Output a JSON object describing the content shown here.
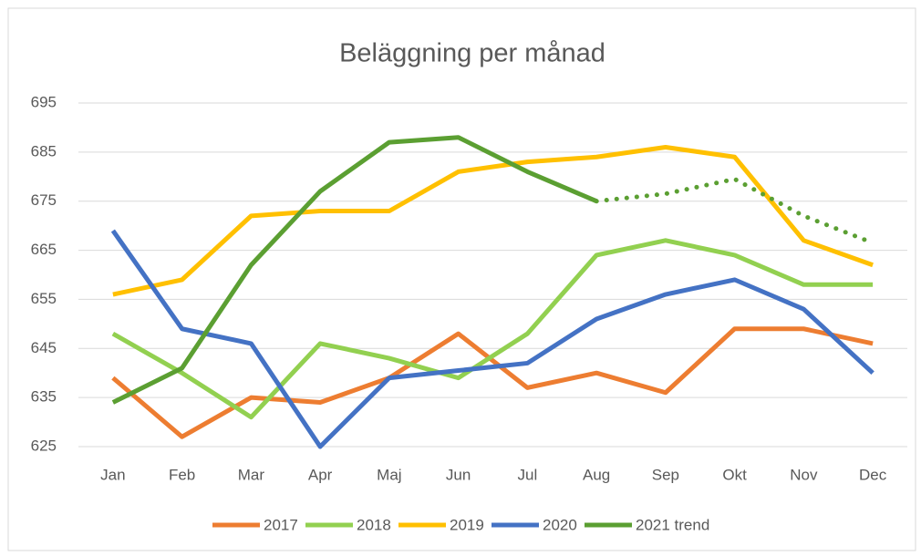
{
  "chart_data": {
    "type": "line",
    "title": "Beläggning per månad",
    "categories": [
      "Jan",
      "Feb",
      "Mar",
      "Apr",
      "Maj",
      "Jun",
      "Jul",
      "Aug",
      "Sep",
      "Okt",
      "Nov",
      "Dec"
    ],
    "series": [
      {
        "name": "2017",
        "color": "#ed7d31",
        "values": [
          639,
          627,
          635,
          634,
          639,
          648,
          637,
          640,
          636,
          649,
          649,
          646
        ]
      },
      {
        "name": "2018",
        "color": "#92d050",
        "values": [
          648,
          640,
          631,
          646,
          643,
          639,
          648,
          664,
          667,
          664,
          658,
          658
        ]
      },
      {
        "name": "2019",
        "color": "#ffc000",
        "values": [
          656,
          659,
          672,
          673,
          673,
          681,
          683,
          684,
          686,
          684,
          667,
          662
        ]
      },
      {
        "name": "2020",
        "color": "#4472c4",
        "values": [
          669,
          649,
          646,
          625,
          639,
          640.5,
          642,
          651,
          656,
          659,
          653,
          640
        ]
      },
      {
        "name": "2021 trend",
        "color": "#5b9f32",
        "values": [
          634,
          641,
          662,
          677,
          687,
          688,
          681,
          675,
          676.5,
          679.5,
          672,
          666.5
        ],
        "dotted_from_index": 7
      }
    ],
    "ylim": [
      625,
      695
    ],
    "yticks": [
      625,
      635,
      645,
      655,
      665,
      675,
      685,
      695
    ],
    "grid": true,
    "legend": "bottom"
  }
}
